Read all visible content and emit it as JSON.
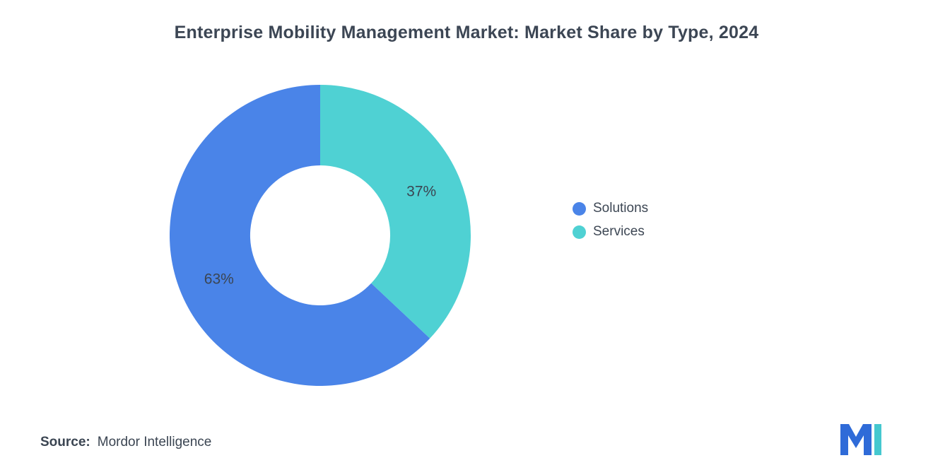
{
  "title": "Enterprise Mobility Management Market: Market Share by Type, 2024",
  "source": {
    "label": "Source:",
    "value": "Mordor Intelligence"
  },
  "chart_data": {
    "type": "pie",
    "subtype": "donut",
    "title": "Enterprise Mobility Management Market: Market Share by Type, 2024",
    "series": [
      {
        "name": "Solutions",
        "value": 63,
        "label": "63%",
        "color": "#4a84e8"
      },
      {
        "name": "Services",
        "value": 37,
        "label": "37%",
        "color": "#4fd1d3"
      }
    ],
    "legend_position": "right",
    "start_angle_deg": 0,
    "direction": "counterclockwise",
    "inner_radius_ratio": 0.465,
    "label_color": "#3b4552",
    "label_font_size": 21
  },
  "branding": {
    "logo_blue": "#2f6bd8",
    "logo_teal": "#45c8cf"
  }
}
